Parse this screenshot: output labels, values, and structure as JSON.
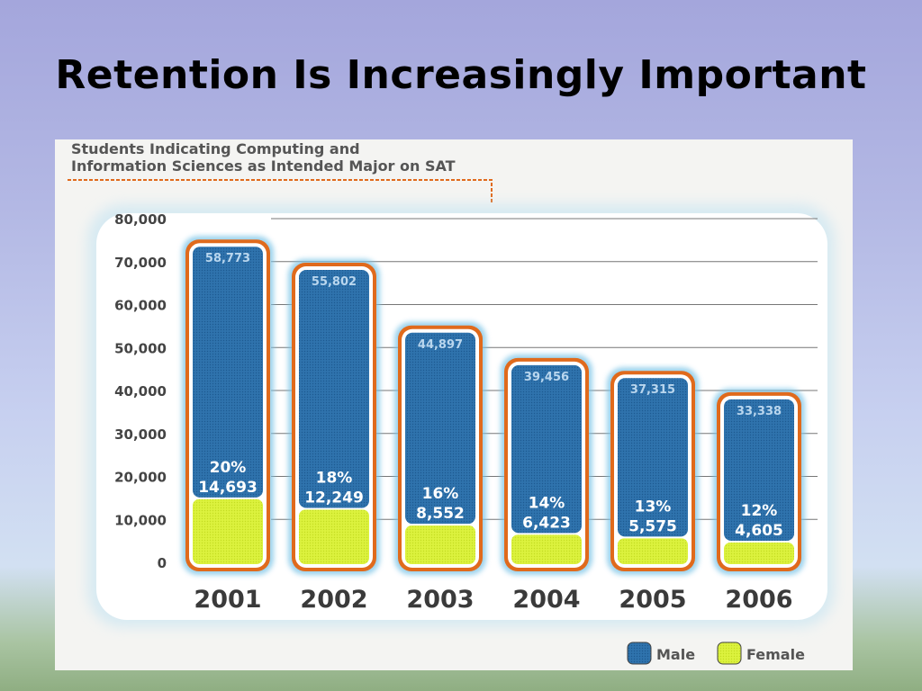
{
  "slide": {
    "title": "Retention Is Increasingly Important"
  },
  "chart_data": {
    "type": "bar",
    "stacked": true,
    "title_lines": [
      "Students Indicating Computing and",
      "Information Sciences as Intended Major on SAT"
    ],
    "categories": [
      "2001",
      "2002",
      "2003",
      "2004",
      "2005",
      "2006"
    ],
    "series": [
      {
        "name": "Female",
        "color": "#d8f03a",
        "values": [
          14693,
          12249,
          8552,
          6423,
          5575,
          4605
        ],
        "labels": [
          "14,693",
          "12,249",
          "8,552",
          "6,423",
          "5,575",
          "4,605"
        ],
        "percent_labels": [
          "20%",
          "18%",
          "16%",
          "14%",
          "13%",
          "12%"
        ]
      },
      {
        "name": "Male",
        "color": "#2f73ad",
        "values": [
          58773,
          55802,
          44897,
          39456,
          37315,
          33338
        ],
        "labels": [
          "58,773",
          "55,802",
          "44,897",
          "39,456",
          "37,315",
          "33,338"
        ]
      }
    ],
    "y_ticks": [
      "0",
      "10,000",
      "20,000",
      "30,000",
      "40,000",
      "50,000",
      "60,000",
      "70,000",
      "80,000"
    ],
    "ylim": [
      0,
      80000
    ],
    "grid": true,
    "legend_position": "bottom-right",
    "legend": [
      "Male",
      "Female"
    ],
    "accent_color": "#e06a1c"
  }
}
